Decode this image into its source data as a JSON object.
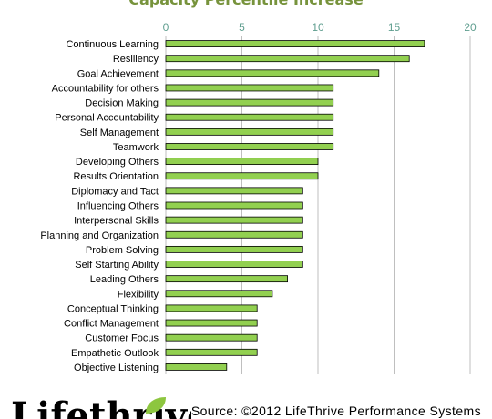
{
  "chart_data": {
    "type": "bar",
    "orientation": "horizontal",
    "title": "Capacity Percentile Increase",
    "categories": [
      "Continuous Learning",
      "Resiliency",
      "Goal Achievement",
      "Accountability for others",
      "Decision Making",
      "Personal Accountability",
      "Self Management",
      "Teamwork",
      "Developing Others",
      "Results Orientation",
      "Diplomacy and Tact",
      "Influencing Others",
      "Interpersonal Skills",
      "Planning and Organization",
      "Problem Solving",
      "Self Starting Ability",
      "Leading Others",
      "Flexibility",
      "Conceptual Thinking",
      "Conflict Management",
      "Customer Focus",
      "Empathetic Outlook",
      "Objective Listening"
    ],
    "values": [
      17,
      16,
      14,
      11,
      11,
      11,
      11,
      11,
      10,
      10,
      9,
      9,
      9,
      9,
      9,
      9,
      8,
      7,
      6,
      6,
      6,
      6,
      4
    ],
    "xlim": [
      0,
      20
    ],
    "xticks": [
      "0",
      "5",
      "10",
      "15",
      "20"
    ],
    "axis_position": "top",
    "grid": true,
    "bar_color": "#92d050",
    "bar_border_color": "#000000",
    "title_color": "#77933c"
  },
  "footer": {
    "source": "Source: ©2012 LifeThrive Performance Systems",
    "logo_text": "Lifethrive",
    "logo_color": "#000000",
    "leaf_color": "#8dc63f"
  }
}
